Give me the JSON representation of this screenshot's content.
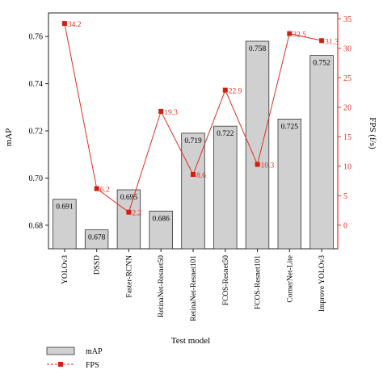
{
  "chart_data": {
    "type": "bar",
    "categories": [
      "YOLOv3",
      "DSSD",
      "Faster-RCNN",
      "RetinaNet-Resnet50",
      "RetinaNet-Resnet101",
      "FCOS-Resnet50",
      "FCOS-Resnet101",
      "CornerNet-Lite",
      "Improve YOLOv3"
    ],
    "xlabel": "Test model",
    "series": [
      {
        "name": "mAP",
        "type": "bar",
        "axis": "left",
        "values": [
          0.691,
          0.678,
          0.695,
          0.686,
          0.719,
          0.722,
          0.758,
          0.725,
          0.752
        ],
        "labels": [
          "0.691",
          "0.678",
          "0.695",
          "0.686",
          "0.719",
          "0.722",
          "0.758",
          "0.725",
          "0.752"
        ],
        "color": "#d0d0d0"
      },
      {
        "name": "FPS",
        "type": "line",
        "axis": "right",
        "values": [
          34.2,
          6.2,
          2.2,
          19.3,
          8.6,
          22.9,
          10.3,
          32.5,
          31.3
        ],
        "labels": [
          "34.2",
          "6.2",
          "2.2",
          "19.3",
          "8.6",
          "22.9",
          "10.3",
          "32.5",
          "31.3"
        ],
        "color": "#e03020"
      }
    ],
    "y_left": {
      "label": "mAP",
      "lim": [
        0.67,
        0.77
      ],
      "ticks": [
        "0.68",
        "0.70",
        "0.72",
        "0.74",
        "0.76"
      ]
    },
    "y_right": {
      "label": "FPS (f/s)",
      "lim": [
        -4,
        36
      ],
      "ticks": [
        "0",
        "5",
        "10",
        "15",
        "20",
        "25",
        "30",
        "35"
      ]
    },
    "legend": {
      "placement": "bottom-left"
    }
  }
}
